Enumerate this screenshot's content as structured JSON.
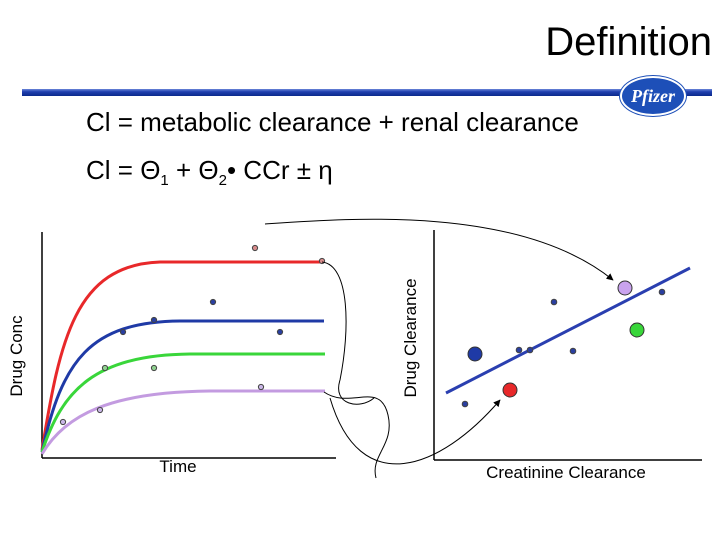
{
  "slide": {
    "title": "Definition",
    "logo_text": "Pfizer",
    "equation_1": "Cl = metabolic clearance + renal clearance",
    "equation_2": {
      "lhs": "Cl = ",
      "theta": "Θ",
      "sub1": "1",
      "plus": " + ",
      "sub2": "2",
      "tail": "• CCr  ±  η"
    }
  },
  "left_plot": {
    "x_label": "Time",
    "y_label": "Drug Conc",
    "curves": [
      {
        "color": "#e8282a"
      },
      {
        "color": "#1f3aa6"
      },
      {
        "color": "#39d63a"
      },
      {
        "color": "#c39be0"
      }
    ]
  },
  "right_plot": {
    "x_label": "Creatinine Clearance",
    "y_label": "Drug Clearance",
    "line_color": "#2a3fb0"
  }
}
